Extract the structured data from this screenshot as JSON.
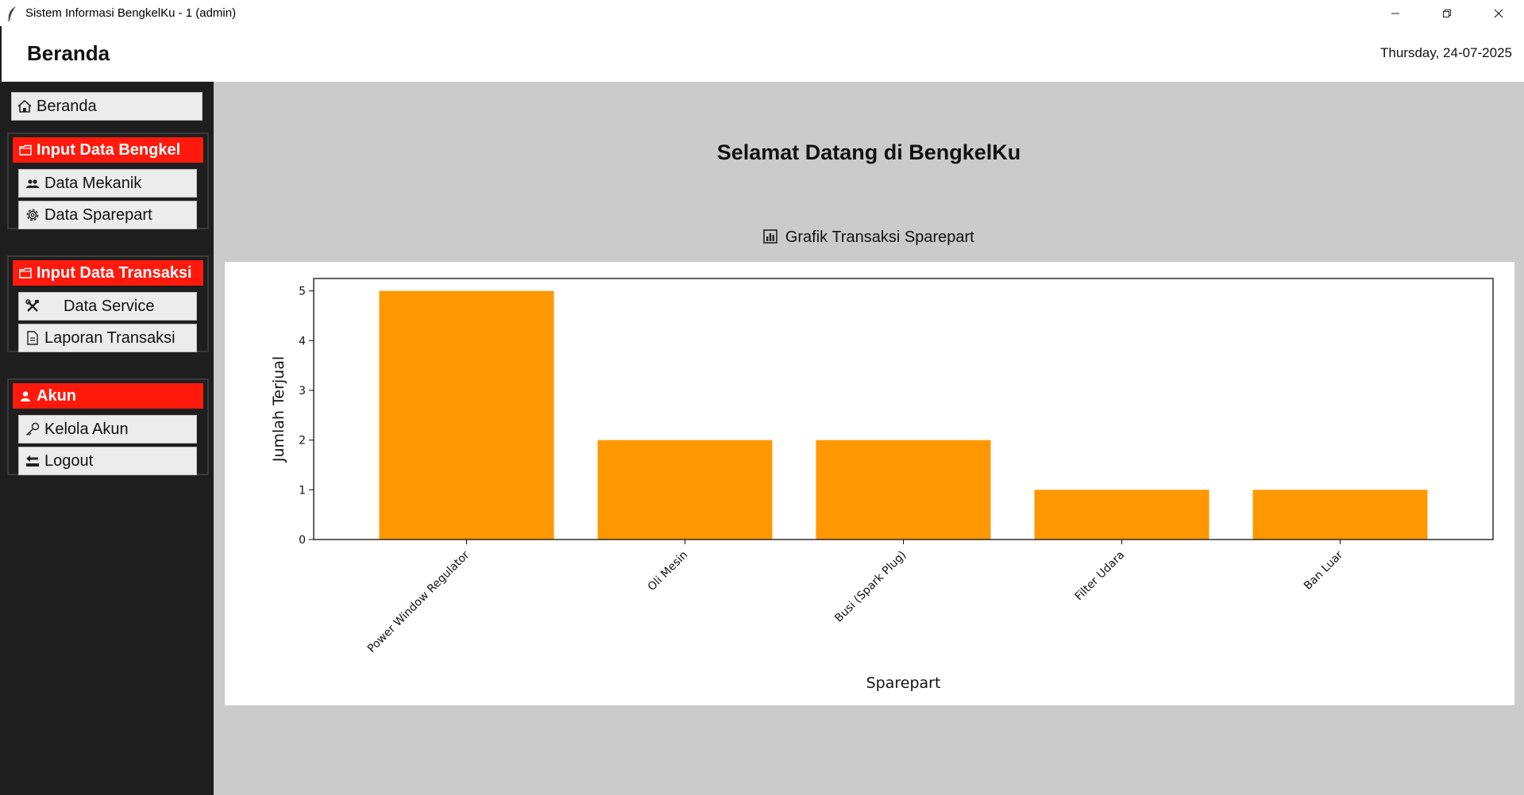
{
  "window": {
    "title": "Sistem Informasi BengkelKu - 1 (admin)",
    "controls": [
      "minimize-icon",
      "restore-icon",
      "close-icon"
    ]
  },
  "header": {
    "title": "Beranda",
    "date": "Thursday, 24-07-2025"
  },
  "sidebar": {
    "home": {
      "label": "Beranda",
      "icon": "house-icon"
    },
    "groups": [
      {
        "title": "Input Data Bengkel",
        "icon": "folder-icon",
        "items": [
          {
            "label": "Data Mekanik",
            "icon": "people-icon"
          },
          {
            "label": "Data Sparepart",
            "icon": "gear-icon"
          }
        ]
      },
      {
        "title": "Input Data Transaksi",
        "icon": "folder-icon",
        "items": [
          {
            "label": "Data Service",
            "icon": "tools-icon"
          },
          {
            "label": "Laporan Transaksi",
            "icon": "document-icon"
          }
        ]
      },
      {
        "title": "Akun",
        "icon": "user-icon",
        "items": [
          {
            "label": "Kelola Akun",
            "icon": "key-icon"
          },
          {
            "label": "Logout",
            "icon": "back-arrow-icon"
          }
        ]
      }
    ],
    "colors": {
      "background": "#1e1e1e",
      "group_header": "#ff1a0d"
    }
  },
  "main": {
    "welcome": "Selamat Datang di BengkelKu",
    "chart_caption": "Grafik Transaksi Sparepart",
    "chart_caption_icon": "bar-chart-icon"
  },
  "chart_data": {
    "type": "bar",
    "categories": [
      "Power Window Regulator",
      "Oli Mesin",
      "Busi (Spark Plug)",
      "Filter Udara",
      "Ban Luar"
    ],
    "values": [
      5,
      2,
      2,
      1,
      1
    ],
    "xlabel": "Sparepart",
    "ylabel": "Jumlah Terjual",
    "ylim": [
      0,
      5.25
    ],
    "yticks": [
      0,
      1,
      2,
      3,
      4,
      5
    ],
    "bar_color": "#ff9800",
    "grid": false,
    "legend": "none"
  }
}
